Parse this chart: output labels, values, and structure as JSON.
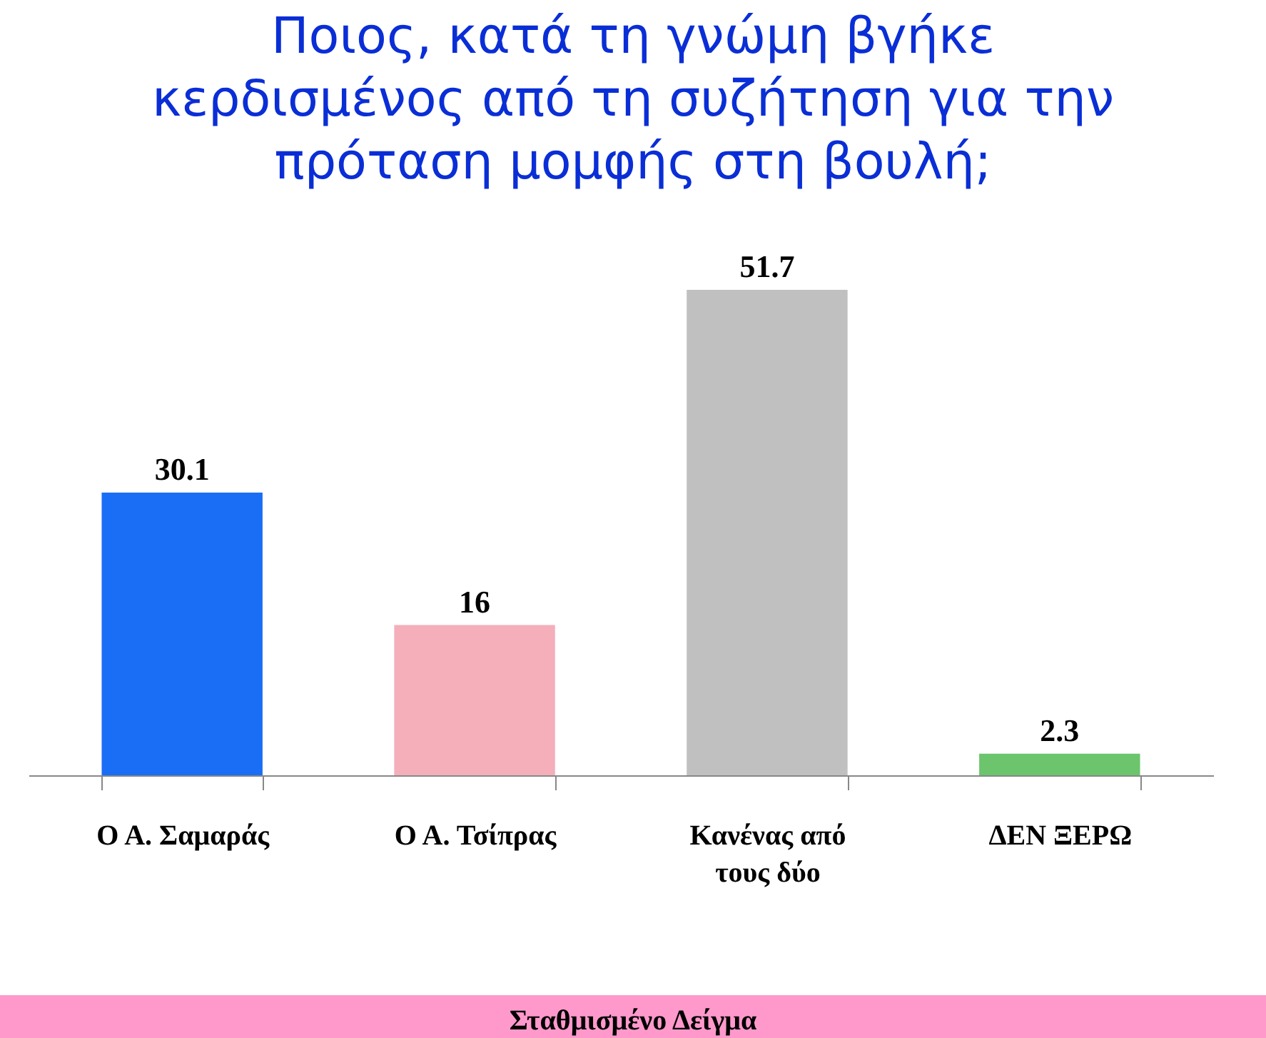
{
  "chart_data": {
    "type": "bar",
    "title": "Ποιος, κατά τη γνώμη βγήκε κερδισμένος από τη συζήτηση για την πρόταση μομφής στη βουλή;",
    "categories": [
      "Ο Α. Σαμαράς",
      "Ο Α. Τσίπρας",
      "Κανένας από τους δύο",
      "ΔΕΝ ΞΕΡΩ"
    ],
    "values": [
      30.1,
      16,
      51.7,
      2.3
    ],
    "colors": [
      "#1a6ef5",
      "#f4afba",
      "#c0c0c0",
      "#6cc46c"
    ],
    "data_labels": true,
    "annotations": [
      "Σταθμισμένο Δείγμα"
    ]
  }
}
